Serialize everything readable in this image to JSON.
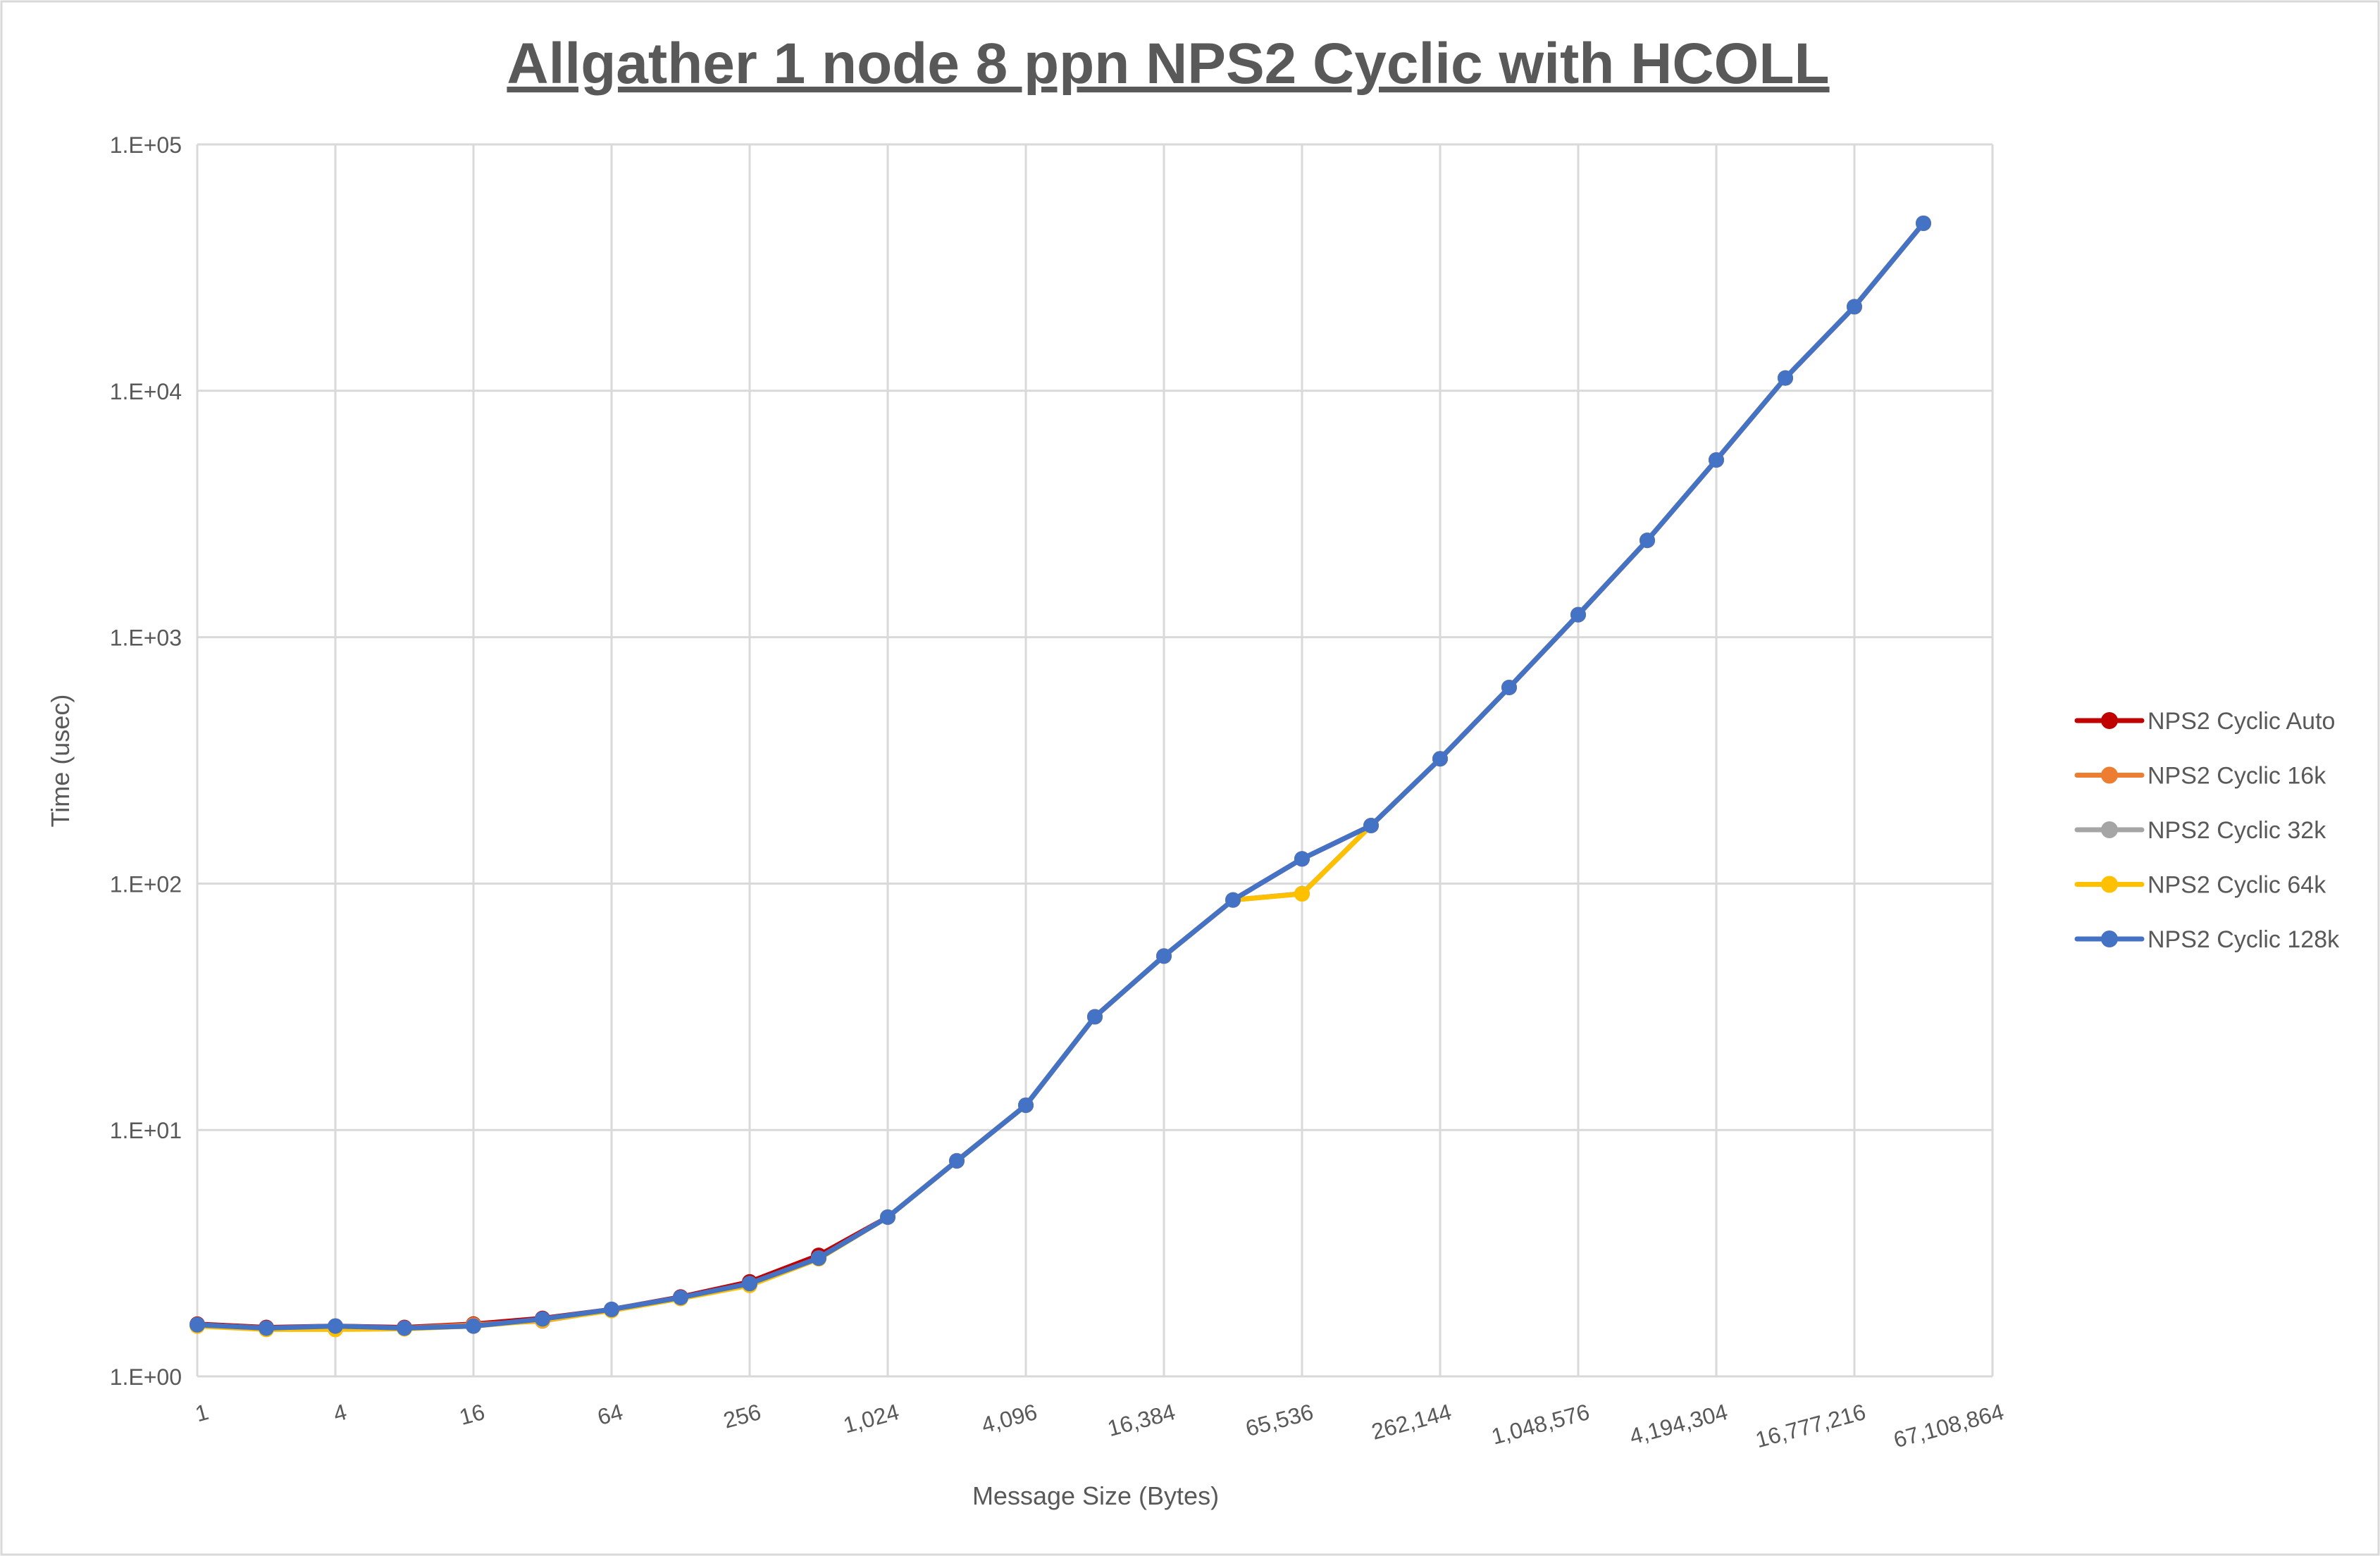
{
  "chart_data": {
    "type": "line",
    "title": "Allgather 1 node 8 ppn NPS2 Cyclic with HCOLL",
    "xlabel": "Message Size (Bytes)",
    "ylabel": "Time (usec)",
    "x_scale": "log2",
    "y_scale": "log10",
    "xlim": [
      1,
      67108864
    ],
    "ylim": [
      1,
      100000
    ],
    "grid": true,
    "legend_position": "right",
    "x_tick_labels": [
      "1",
      "4",
      "16",
      "64",
      "256",
      "1,024",
      "4,096",
      "16,384",
      "65,536",
      "262,144",
      "1,048,576",
      "4,194,304",
      "16,777,216",
      "67,108,864"
    ],
    "y_tick_labels": [
      "1.E+00",
      "1.E+01",
      "1.E+02",
      "1.E+03",
      "1.E+04",
      "1.E+05"
    ],
    "x": [
      1,
      2,
      4,
      8,
      16,
      32,
      64,
      128,
      256,
      512,
      1024,
      2048,
      4096,
      8192,
      16384,
      32768,
      65536,
      131072,
      262144,
      524288,
      1048576,
      2097152,
      4194304,
      8388608,
      16777216,
      33554432
    ],
    "series": [
      {
        "name": "NPS2 Cyclic Auto",
        "color": "#C00000",
        "values": [
          1.63,
          1.58,
          1.6,
          1.58,
          1.63,
          1.72,
          1.87,
          2.1,
          2.42,
          3.1,
          4.43,
          7.5,
          12.6,
          28.8,
          50.8,
          85.8,
          126,
          172,
          321,
          625,
          1234,
          2472,
          5240,
          11270,
          21940,
          47860
        ]
      },
      {
        "name": "NPS2 Cyclic 16k",
        "color": "#ED7D31",
        "values": [
          1.62,
          1.57,
          1.58,
          1.57,
          1.62,
          1.68,
          1.86,
          2.08,
          2.38,
          3.02,
          4.43,
          7.49,
          12.6,
          28.8,
          50.8,
          85.8,
          91,
          172,
          321,
          625,
          1234,
          2472,
          5240,
          11270,
          21940,
          47860
        ]
      },
      {
        "name": "NPS2 Cyclic 32k",
        "color": "#A5A5A5",
        "values": [
          1.62,
          1.56,
          1.57,
          1.57,
          1.6,
          1.7,
          1.86,
          2.08,
          2.36,
          3.02,
          4.43,
          7.49,
          12.6,
          28.8,
          50.8,
          85.8,
          91,
          172,
          321,
          625,
          1234,
          2472,
          5240,
          11270,
          21940,
          47860
        ]
      },
      {
        "name": "NPS2 Cyclic 64k",
        "color": "#FFC000",
        "values": [
          1.6,
          1.55,
          1.55,
          1.56,
          1.6,
          1.69,
          1.85,
          2.07,
          2.34,
          3.0,
          4.43,
          7.49,
          12.6,
          28.8,
          50.8,
          85.8,
          90.8,
          172,
          321,
          625,
          1234,
          2472,
          5240,
          11270,
          21940,
          47860
        ]
      },
      {
        "name": "NPS2 Cyclic 128k",
        "color": "#4472C4",
        "values": [
          1.62,
          1.57,
          1.6,
          1.57,
          1.6,
          1.71,
          1.87,
          2.09,
          2.38,
          3.02,
          4.43,
          7.49,
          12.6,
          28.8,
          50.8,
          85.8,
          126,
          172,
          321,
          625,
          1234,
          2472,
          5240,
          11270,
          21940,
          47860
        ]
      }
    ]
  }
}
